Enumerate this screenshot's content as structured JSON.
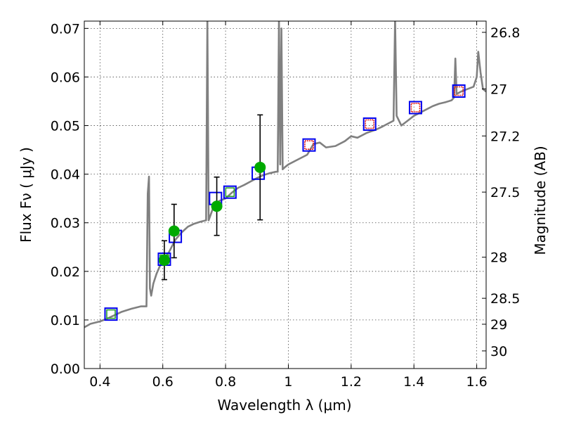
{
  "chart_data": {
    "type": "scatter",
    "xlabel": "Wavelength  λ (μm)",
    "ylabel": "Flux  Fν  ( μJy )",
    "ylabel_right": "Magnitude (AB)",
    "xlim": [
      0.35,
      1.63
    ],
    "ylim": [
      0.0,
      0.0715
    ],
    "x_ticks": [
      0.4,
      0.6,
      0.8,
      1.0,
      1.2,
      1.4,
      1.6
    ],
    "x_tick_labels": [
      "0.4",
      "0.6",
      "0.8",
      "1",
      "1.2",
      "1.4",
      "1.6"
    ],
    "y_ticks": [
      0.0,
      0.01,
      0.02,
      0.03,
      0.04,
      0.05,
      0.06,
      0.07
    ],
    "y_tick_labels": [
      "0.00",
      "0.01",
      "0.02",
      "0.03",
      "0.04",
      "0.05",
      "0.06",
      "0.07"
    ],
    "right_ticks": [
      26.8,
      27,
      27.2,
      27.5,
      28,
      28.5,
      29,
      30
    ],
    "right_tick_labels": [
      "26.8",
      "27",
      "27.2",
      "27.5",
      "28",
      "28.5",
      "29",
      "30"
    ],
    "grid": true,
    "colors": {
      "spectrum": "#808080",
      "observed": "#00aa00",
      "model_box": "#0000ee",
      "inner_green": "#2ca02c",
      "inner_red": "#e02020",
      "errorbar": "#000000"
    },
    "series": [
      {
        "name": "model_spectrum",
        "style": "line",
        "points": [
          [
            0.35,
            0.0085
          ],
          [
            0.37,
            0.0092
          ],
          [
            0.4,
            0.0097
          ],
          [
            0.42,
            0.0102
          ],
          [
            0.44,
            0.0108
          ],
          [
            0.47,
            0.0117
          ],
          [
            0.5,
            0.0123
          ],
          [
            0.53,
            0.0128
          ],
          [
            0.548,
            0.0128
          ],
          [
            0.552,
            0.036
          ],
          [
            0.556,
            0.0395
          ],
          [
            0.559,
            0.0165
          ],
          [
            0.563,
            0.015
          ],
          [
            0.57,
            0.0175
          ],
          [
            0.58,
            0.0195
          ],
          [
            0.59,
            0.021
          ],
          [
            0.6,
            0.0222
          ],
          [
            0.62,
            0.024
          ],
          [
            0.64,
            0.0265
          ],
          [
            0.66,
            0.028
          ],
          [
            0.68,
            0.0292
          ],
          [
            0.7,
            0.0298
          ],
          [
            0.72,
            0.0302
          ],
          [
            0.738,
            0.0305
          ],
          [
            0.742,
            0.072
          ],
          [
            0.746,
            0.0305
          ],
          [
            0.76,
            0.033
          ],
          [
            0.78,
            0.0345
          ],
          [
            0.8,
            0.035
          ],
          [
            0.82,
            0.0362
          ],
          [
            0.84,
            0.0372
          ],
          [
            0.86,
            0.0378
          ],
          [
            0.88,
            0.0385
          ],
          [
            0.9,
            0.0392
          ],
          [
            0.92,
            0.0398
          ],
          [
            0.94,
            0.0402
          ],
          [
            0.96,
            0.0405
          ],
          [
            0.966,
            0.0405
          ],
          [
            0.97,
            0.072
          ],
          [
            0.974,
            0.042
          ],
          [
            0.978,
            0.07
          ],
          [
            0.982,
            0.041
          ],
          [
            0.99,
            0.0415
          ],
          [
            1.0,
            0.042
          ],
          [
            1.03,
            0.043
          ],
          [
            1.06,
            0.044
          ],
          [
            1.08,
            0.0462
          ],
          [
            1.1,
            0.0465
          ],
          [
            1.12,
            0.0455
          ],
          [
            1.15,
            0.0458
          ],
          [
            1.18,
            0.0468
          ],
          [
            1.2,
            0.0478
          ],
          [
            1.22,
            0.0475
          ],
          [
            1.25,
            0.0485
          ],
          [
            1.28,
            0.0492
          ],
          [
            1.3,
            0.0498
          ],
          [
            1.32,
            0.0505
          ],
          [
            1.335,
            0.051
          ],
          [
            1.34,
            0.072
          ],
          [
            1.345,
            0.052
          ],
          [
            1.36,
            0.05
          ],
          [
            1.38,
            0.051
          ],
          [
            1.4,
            0.052
          ],
          [
            1.43,
            0.053
          ],
          [
            1.46,
            0.054
          ],
          [
            1.48,
            0.0545
          ],
          [
            1.5,
            0.0548
          ],
          [
            1.52,
            0.0552
          ],
          [
            1.528,
            0.0558
          ],
          [
            1.532,
            0.0638
          ],
          [
            1.536,
            0.0565
          ],
          [
            1.55,
            0.057
          ],
          [
            1.57,
            0.0575
          ],
          [
            1.59,
            0.058
          ],
          [
            1.6,
            0.06
          ],
          [
            1.605,
            0.0652
          ],
          [
            1.612,
            0.061
          ],
          [
            1.62,
            0.0575
          ],
          [
            1.63,
            0.057
          ]
        ]
      },
      {
        "name": "observed_photometry",
        "style": "marker_errorbar",
        "points": [
          {
            "x": 0.605,
            "y": 0.0223,
            "yerr": 0.004
          },
          {
            "x": 0.636,
            "y": 0.0283,
            "yerr": 0.0055
          },
          {
            "x": 0.772,
            "y": 0.0334,
            "yerr": 0.006
          },
          {
            "x": 0.91,
            "y": 0.0414,
            "yerr": 0.0108
          }
        ]
      },
      {
        "name": "model_photometry",
        "style": "square",
        "points": [
          {
            "x": 0.435,
            "y": 0.0112,
            "inner": "green"
          },
          {
            "x": 0.605,
            "y": 0.0225,
            "inner": "green"
          },
          {
            "x": 0.64,
            "y": 0.0272,
            "inner": "none"
          },
          {
            "x": 0.768,
            "y": 0.035,
            "inner": "none"
          },
          {
            "x": 0.814,
            "y": 0.0363,
            "inner": "green"
          },
          {
            "x": 0.904,
            "y": 0.0402,
            "inner": "none"
          },
          {
            "x": 1.066,
            "y": 0.046,
            "inner": "red"
          },
          {
            "x": 1.259,
            "y": 0.0503,
            "inner": "red"
          },
          {
            "x": 1.405,
            "y": 0.0537,
            "inner": "red"
          },
          {
            "x": 1.543,
            "y": 0.0571,
            "inner": "red"
          }
        ]
      }
    ]
  }
}
